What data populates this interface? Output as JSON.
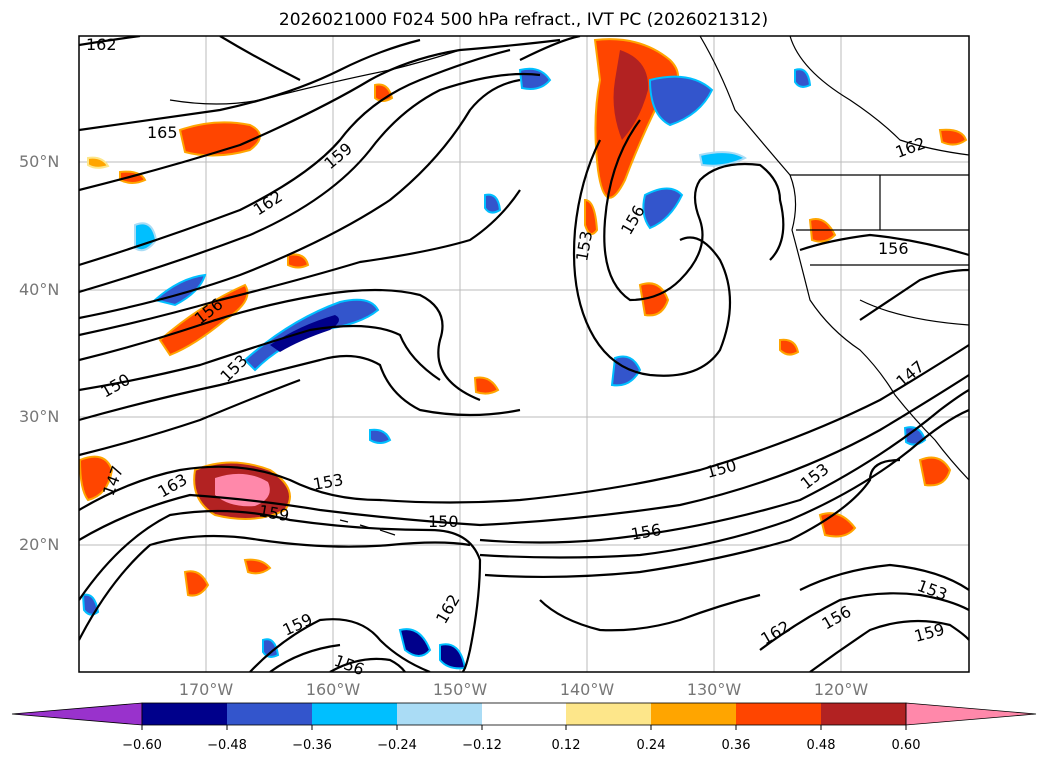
{
  "title": "2026021000 F024 500 hPa refract., IVT PC (2026021312)",
  "map": {
    "lat_labels": [
      "50°N",
      "40°N",
      "30°N",
      "20°N"
    ],
    "lon_labels": [
      "170°W",
      "160°W",
      "150°W",
      "140°W",
      "130°W",
      "120°W"
    ],
    "contour_labels": [
      "162",
      "165",
      "159",
      "162",
      "156",
      "153",
      "150",
      "147",
      "163",
      "159",
      "153",
      "150",
      "156",
      "150",
      "153",
      "147",
      "156",
      "153",
      "156",
      "162",
      "153",
      "156",
      "159",
      "162",
      "159"
    ]
  },
  "colorbar": {
    "ticks": [
      "−0.60",
      "−0.48",
      "−0.36",
      "−0.24",
      "−0.12",
      "0.12",
      "0.24",
      "0.36",
      "0.48",
      "0.60"
    ],
    "colors": [
      "#9932cc",
      "#00008b",
      "#3355cc",
      "#00bfff",
      "#aadcf5",
      "#ffffff",
      "#fde68a",
      "#ffa500",
      "#ff4500",
      "#b22222",
      "#ff88aa"
    ]
  }
}
